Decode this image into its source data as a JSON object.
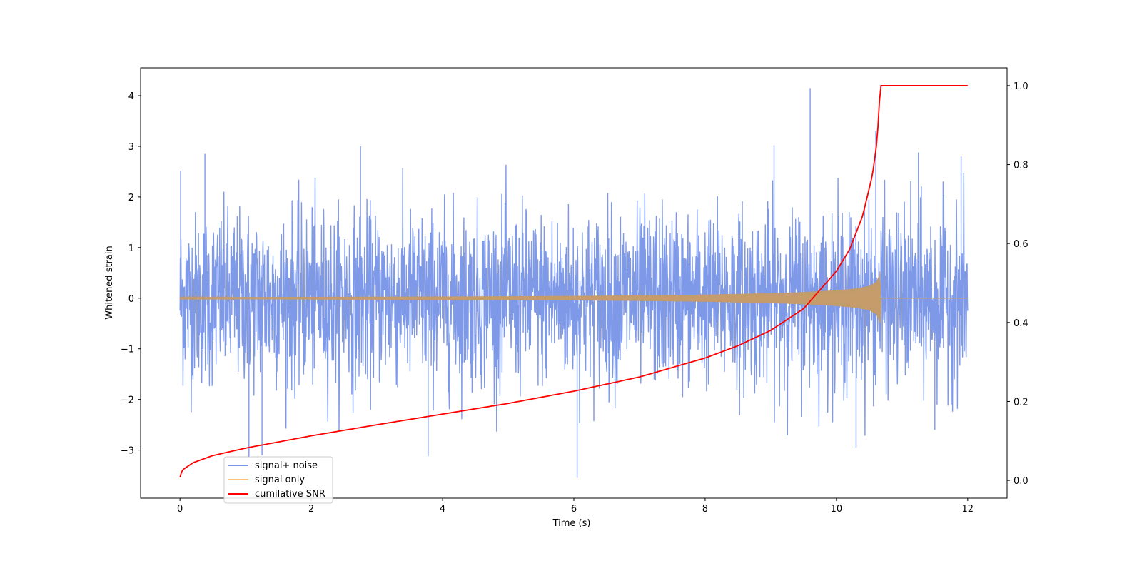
{
  "chart_data": {
    "type": "line",
    "title": "",
    "xlabel": "Time (s)",
    "ylabel": "Whitened strain",
    "ylabel_right": "",
    "xlim": [
      -0.6,
      12.6
    ],
    "ylim": [
      -3.95,
      4.55
    ],
    "ylim_right": [
      -0.045,
      1.045
    ],
    "x_ticks": [
      0,
      2,
      4,
      6,
      8,
      10,
      12
    ],
    "x_tick_labels": [
      "0",
      "2",
      "4",
      "6",
      "8",
      "10",
      "12"
    ],
    "y_ticks": [
      -3,
      -2,
      -1,
      0,
      1,
      2,
      3,
      4
    ],
    "y_tick_labels": [
      "−3",
      "−2",
      "−1",
      "0",
      "1",
      "2",
      "3",
      "4"
    ],
    "y_right_ticks": [
      0.0,
      0.2,
      0.4,
      0.6,
      0.8,
      1.0
    ],
    "y_right_tick_labels": [
      "0.0",
      "0.2",
      "0.4",
      "0.6",
      "0.8",
      "1.0"
    ],
    "grid": false,
    "legend_position": "lower-left",
    "series": [
      {
        "name": "signal+ noise",
        "color": "#7893e8",
        "axis": "left",
        "x_range": [
          0,
          12
        ],
        "noise_std": 1.0,
        "peaks": [
          {
            "x": 0.01,
            "y": 2.52
          },
          {
            "x": 0.38,
            "y": 2.85
          },
          {
            "x": 1.05,
            "y": -3.15
          },
          {
            "x": 1.25,
            "y": -3.1
          },
          {
            "x": 2.75,
            "y": 3.0
          },
          {
            "x": 3.78,
            "y": -3.12
          },
          {
            "x": 6.05,
            "y": -3.55
          },
          {
            "x": 9.05,
            "y": 3.02
          },
          {
            "x": 9.6,
            "y": 4.15
          },
          {
            "x": 10.3,
            "y": -2.95
          },
          {
            "x": 10.6,
            "y": 3.3
          },
          {
            "x": 11.25,
            "y": 2.88
          },
          {
            "x": 11.9,
            "y": 2.8
          },
          {
            "x": 11.5,
            "y": -2.6
          }
        ]
      },
      {
        "name": "signal only",
        "color": "#fdc272",
        "axis": "left",
        "x": [
          0,
          1,
          2,
          3,
          4,
          5,
          6,
          7,
          8,
          9,
          9.5,
          10,
          10.3,
          10.5,
          10.62,
          10.67,
          10.68,
          12
        ],
        "envelope": [
          0.02,
          0.022,
          0.025,
          0.028,
          0.032,
          0.037,
          0.044,
          0.054,
          0.07,
          0.098,
          0.12,
          0.155,
          0.19,
          0.24,
          0.33,
          0.56,
          0.0,
          0.0
        ]
      },
      {
        "name": "cumilative SNR",
        "color": "#ff0000",
        "axis": "right",
        "x": [
          0,
          0.01,
          0.05,
          0.2,
          0.5,
          1,
          2,
          3,
          4,
          5,
          6,
          7,
          8,
          8.5,
          9,
          9.5,
          10,
          10.2,
          10.4,
          10.55,
          10.62,
          10.67,
          12
        ],
        "y": [
          0.008,
          0.018,
          0.028,
          0.045,
          0.063,
          0.082,
          0.113,
          0.141,
          0.168,
          0.195,
          0.226,
          0.262,
          0.31,
          0.341,
          0.38,
          0.435,
          0.53,
          0.585,
          0.67,
          0.775,
          0.86,
          1.0,
          1.0
        ]
      }
    ]
  }
}
